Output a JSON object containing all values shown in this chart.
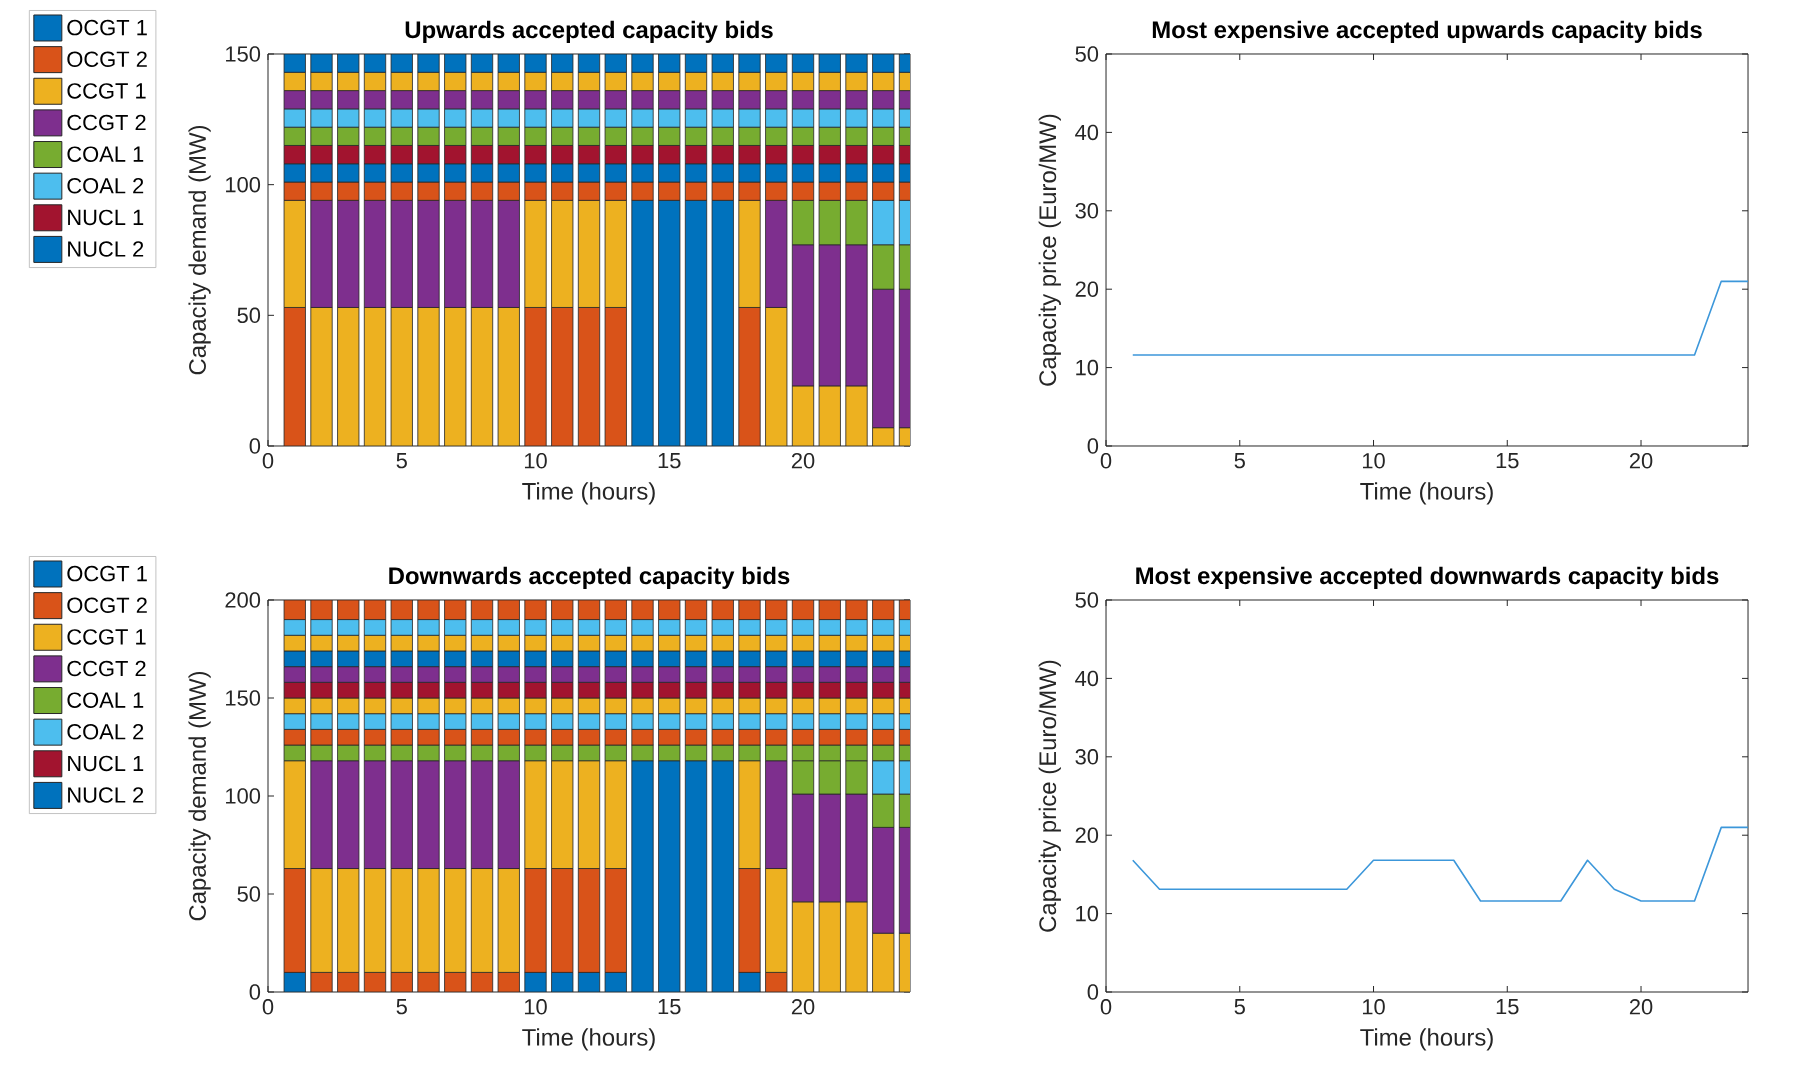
{
  "chart_data": [
    {
      "type": "bar",
      "stacked": true,
      "title": "Upwards accepted capacity bids",
      "xlabel": "Time (hours)",
      "ylabel": "Capacity demand (MW)",
      "legend": "left",
      "x": [
        1,
        2,
        3,
        4,
        5,
        6,
        7,
        8,
        9,
        10,
        11,
        12,
        13,
        14,
        15,
        16,
        17,
        18,
        19,
        20,
        21,
        22,
        23,
        24
      ],
      "xlim": [
        0,
        24
      ],
      "ylim": [
        0,
        150
      ],
      "xticks": [
        0,
        5,
        10,
        15,
        20
      ],
      "yticks": [
        0,
        50,
        100,
        150
      ],
      "series": [
        {
          "name": "OCGT 1",
          "color": "#0072bd",
          "values": [
            null,
            null,
            null,
            null,
            null,
            null,
            null,
            null,
            null,
            null,
            null,
            null,
            null,
            null,
            null,
            null,
            null,
            null,
            null,
            null,
            null,
            null,
            null,
            null
          ]
        },
        {
          "name": "OCGT 2",
          "color": "#d95319",
          "values": [
            53,
            null,
            null,
            null,
            null,
            null,
            null,
            null,
            null,
            53,
            53,
            53,
            53,
            null,
            null,
            null,
            null,
            53,
            null,
            null,
            null,
            null,
            null,
            null
          ]
        },
        {
          "name": "CCGT 1",
          "color": "#edb120",
          "values": [
            41,
            53,
            53,
            53,
            53,
            53,
            53,
            53,
            53,
            41,
            41,
            41,
            41,
            null,
            null,
            null,
            null,
            41,
            53,
            23,
            23,
            23,
            7,
            7
          ]
        },
        {
          "name": "CCGT 2",
          "color": "#7e2f8e",
          "values": [
            null,
            41,
            41,
            41,
            41,
            41,
            41,
            41,
            41,
            null,
            null,
            null,
            null,
            null,
            null,
            null,
            null,
            null,
            41,
            54,
            54,
            54,
            53,
            53
          ]
        },
        {
          "name": "COAL 1",
          "color": "#77ac30",
          "values": [
            null,
            null,
            null,
            null,
            null,
            null,
            null,
            null,
            null,
            null,
            null,
            null,
            null,
            null,
            null,
            null,
            null,
            null,
            null,
            17,
            17,
            17,
            17,
            17
          ]
        },
        {
          "name": "COAL 2",
          "color": "#4dbeee",
          "values": [
            null,
            null,
            null,
            null,
            null,
            null,
            null,
            null,
            null,
            null,
            null,
            null,
            null,
            null,
            null,
            null,
            null,
            null,
            null,
            null,
            null,
            null,
            17,
            17
          ]
        },
        {
          "name": "NUCL 1",
          "color": "#a2142f",
          "values": [
            null,
            null,
            null,
            null,
            null,
            null,
            null,
            null,
            null,
            null,
            null,
            null,
            null,
            null,
            null,
            null,
            null,
            null,
            null,
            null,
            null,
            null,
            null,
            null
          ]
        },
        {
          "name": "NUCL 2",
          "color": "#0072bd",
          "values": [
            null,
            null,
            null,
            null,
            null,
            null,
            null,
            null,
            null,
            null,
            null,
            null,
            null,
            94,
            94,
            94,
            94,
            null,
            null,
            null,
            null,
            null,
            null,
            null
          ]
        },
        {
          "color": "#d95319",
          "values": [
            7,
            7,
            7,
            7,
            7,
            7,
            7,
            7,
            7,
            7,
            7,
            7,
            7,
            7,
            7,
            7,
            7,
            7,
            7,
            7,
            7,
            7,
            7,
            7
          ]
        },
        {
          "color": "#0072bd",
          "values": [
            7,
            7,
            7,
            7,
            7,
            7,
            7,
            7,
            7,
            7,
            7,
            7,
            7,
            7,
            7,
            7,
            7,
            7,
            7,
            7,
            7,
            7,
            7,
            7
          ]
        },
        {
          "color": "#a2142f",
          "values": [
            7,
            7,
            7,
            7,
            7,
            7,
            7,
            7,
            7,
            7,
            7,
            7,
            7,
            7,
            7,
            7,
            7,
            7,
            7,
            7,
            7,
            7,
            7,
            7
          ]
        },
        {
          "color": "#77ac30",
          "values": [
            7,
            7,
            7,
            7,
            7,
            7,
            7,
            7,
            7,
            7,
            7,
            7,
            7,
            7,
            7,
            7,
            7,
            7,
            7,
            7,
            7,
            7,
            7,
            7
          ]
        },
        {
          "color": "#4dbeee",
          "values": [
            7,
            7,
            7,
            7,
            7,
            7,
            7,
            7,
            7,
            7,
            7,
            7,
            7,
            7,
            7,
            7,
            7,
            7,
            7,
            7,
            7,
            7,
            7,
            7
          ]
        },
        {
          "color": "#7e2f8e",
          "values": [
            7,
            7,
            7,
            7,
            7,
            7,
            7,
            7,
            7,
            7,
            7,
            7,
            7,
            7,
            7,
            7,
            7,
            7,
            7,
            7,
            7,
            7,
            7,
            7
          ]
        },
        {
          "color": "#edb120",
          "values": [
            7,
            7,
            7,
            7,
            7,
            7,
            7,
            7,
            7,
            7,
            7,
            7,
            7,
            7,
            7,
            7,
            7,
            7,
            7,
            7,
            7,
            7,
            7,
            7
          ]
        },
        {
          "color": "#0072bd",
          "values": [
            7,
            7,
            7,
            7,
            7,
            7,
            7,
            7,
            7,
            7,
            7,
            7,
            7,
            7,
            7,
            7,
            7,
            7,
            7,
            7,
            7,
            7,
            7,
            7
          ]
        }
      ]
    },
    {
      "type": "line",
      "title": "Most expensive accepted upwards capacity bids",
      "xlabel": "Time (hours)",
      "ylabel": "Capacity price (Euro/MW)",
      "x": [
        1,
        2,
        3,
        4,
        5,
        6,
        7,
        8,
        9,
        10,
        11,
        12,
        13,
        14,
        15,
        16,
        17,
        18,
        19,
        20,
        21,
        22,
        23,
        24
      ],
      "xlim": [
        0,
        24
      ],
      "ylim": [
        0,
        50
      ],
      "xticks": [
        0,
        5,
        10,
        15,
        20
      ],
      "yticks": [
        0,
        10,
        20,
        30,
        40,
        50
      ],
      "series": [
        {
          "color": "#3c97da",
          "values": [
            11.6,
            11.6,
            11.6,
            11.6,
            11.6,
            11.6,
            11.6,
            11.6,
            11.6,
            11.6,
            11.6,
            11.6,
            11.6,
            11.6,
            11.6,
            11.6,
            11.6,
            11.6,
            11.6,
            11.6,
            11.6,
            11.6,
            21,
            21
          ]
        }
      ]
    },
    {
      "type": "bar",
      "stacked": true,
      "title": "Downwards accepted capacity bids",
      "xlabel": "Time (hours)",
      "ylabel": "Capacity demand (MW)",
      "legend": "left",
      "x": [
        1,
        2,
        3,
        4,
        5,
        6,
        7,
        8,
        9,
        10,
        11,
        12,
        13,
        14,
        15,
        16,
        17,
        18,
        19,
        20,
        21,
        22,
        23,
        24
      ],
      "xlim": [
        0,
        24
      ],
      "ylim": [
        0,
        200
      ],
      "xticks": [
        0,
        5,
        10,
        15,
        20
      ],
      "yticks": [
        0,
        50,
        100,
        150,
        200
      ],
      "series": [
        {
          "name": "OCGT 1",
          "color": "#0072bd",
          "values": [
            10,
            null,
            null,
            null,
            null,
            null,
            null,
            null,
            null,
            10,
            10,
            10,
            10,
            null,
            null,
            null,
            null,
            10,
            null,
            null,
            null,
            null,
            null,
            null
          ]
        },
        {
          "name": "OCGT 2",
          "color": "#d95319",
          "values": [
            53,
            10,
            10,
            10,
            10,
            10,
            10,
            10,
            10,
            53,
            53,
            53,
            53,
            null,
            null,
            null,
            null,
            53,
            10,
            null,
            null,
            null,
            null,
            null
          ]
        },
        {
          "name": "CCGT 1",
          "color": "#edb120",
          "values": [
            55,
            53,
            53,
            53,
            53,
            53,
            53,
            53,
            53,
            55,
            55,
            55,
            55,
            null,
            null,
            null,
            null,
            55,
            53,
            46,
            46,
            46,
            30,
            30
          ]
        },
        {
          "name": "CCGT 2",
          "color": "#7e2f8e",
          "values": [
            null,
            55,
            55,
            55,
            55,
            55,
            55,
            55,
            55,
            null,
            null,
            null,
            null,
            null,
            null,
            null,
            null,
            null,
            55,
            55,
            55,
            55,
            54,
            54
          ]
        },
        {
          "name": "COAL 1",
          "color": "#77ac30",
          "values": [
            null,
            null,
            null,
            null,
            null,
            null,
            null,
            null,
            null,
            null,
            null,
            null,
            null,
            null,
            null,
            null,
            null,
            null,
            null,
            17,
            17,
            17,
            17,
            17
          ]
        },
        {
          "name": "COAL 2",
          "color": "#4dbeee",
          "values": [
            null,
            null,
            null,
            null,
            null,
            null,
            null,
            null,
            null,
            null,
            null,
            null,
            null,
            null,
            null,
            null,
            null,
            null,
            null,
            null,
            null,
            null,
            17,
            17
          ]
        },
        {
          "name": "NUCL 1",
          "color": "#a2142f",
          "values": [
            null,
            null,
            null,
            null,
            null,
            null,
            null,
            null,
            null,
            null,
            null,
            null,
            null,
            null,
            null,
            null,
            null,
            null,
            null,
            null,
            null,
            null,
            null,
            null
          ]
        },
        {
          "name": "NUCL 2",
          "color": "#0072bd",
          "values": [
            null,
            null,
            null,
            null,
            null,
            null,
            null,
            null,
            null,
            null,
            null,
            null,
            null,
            118,
            118,
            118,
            118,
            null,
            null,
            null,
            null,
            null,
            null,
            null
          ]
        },
        {
          "color": "#77ac30",
          "values": [
            8,
            8,
            8,
            8,
            8,
            8,
            8,
            8,
            8,
            8,
            8,
            8,
            8,
            8,
            8,
            8,
            8,
            8,
            8,
            8,
            8,
            8,
            8,
            8
          ]
        },
        {
          "color": "#d95319",
          "values": [
            8,
            8,
            8,
            8,
            8,
            8,
            8,
            8,
            8,
            8,
            8,
            8,
            8,
            8,
            8,
            8,
            8,
            8,
            8,
            8,
            8,
            8,
            8,
            8
          ]
        },
        {
          "color": "#4dbeee",
          "values": [
            8,
            8,
            8,
            8,
            8,
            8,
            8,
            8,
            8,
            8,
            8,
            8,
            8,
            8,
            8,
            8,
            8,
            8,
            8,
            8,
            8,
            8,
            8,
            8
          ]
        },
        {
          "color": "#edb120",
          "values": [
            8,
            8,
            8,
            8,
            8,
            8,
            8,
            8,
            8,
            8,
            8,
            8,
            8,
            8,
            8,
            8,
            8,
            8,
            8,
            8,
            8,
            8,
            8,
            8
          ]
        },
        {
          "color": "#a2142f",
          "values": [
            8,
            8,
            8,
            8,
            8,
            8,
            8,
            8,
            8,
            8,
            8,
            8,
            8,
            8,
            8,
            8,
            8,
            8,
            8,
            8,
            8,
            8,
            8,
            8
          ]
        },
        {
          "color": "#7e2f8e",
          "values": [
            8,
            8,
            8,
            8,
            8,
            8,
            8,
            8,
            8,
            8,
            8,
            8,
            8,
            8,
            8,
            8,
            8,
            8,
            8,
            8,
            8,
            8,
            8,
            8
          ]
        },
        {
          "color": "#0072bd",
          "values": [
            8,
            8,
            8,
            8,
            8,
            8,
            8,
            8,
            8,
            8,
            8,
            8,
            8,
            8,
            8,
            8,
            8,
            8,
            8,
            8,
            8,
            8,
            8,
            8
          ]
        },
        {
          "color": "#edb120",
          "values": [
            8,
            8,
            8,
            8,
            8,
            8,
            8,
            8,
            8,
            8,
            8,
            8,
            8,
            8,
            8,
            8,
            8,
            8,
            8,
            8,
            8,
            8,
            8,
            8
          ]
        },
        {
          "color": "#4dbeee",
          "values": [
            8,
            8,
            8,
            8,
            8,
            8,
            8,
            8,
            8,
            8,
            8,
            8,
            8,
            8,
            8,
            8,
            8,
            8,
            8,
            8,
            8,
            8,
            8,
            8
          ]
        },
        {
          "color": "#d95319",
          "values": [
            10,
            10,
            10,
            10,
            10,
            10,
            10,
            10,
            10,
            10,
            10,
            10,
            10,
            10,
            10,
            10,
            10,
            10,
            10,
            10,
            10,
            10,
            10,
            10
          ]
        }
      ]
    },
    {
      "type": "line",
      "title": "Most expensive accepted downwards capacity bids",
      "xlabel": "Time (hours)",
      "ylabel": "Capacity price (Euro/MW)",
      "x": [
        1,
        2,
        3,
        4,
        5,
        6,
        7,
        8,
        9,
        10,
        11,
        12,
        13,
        14,
        15,
        16,
        17,
        18,
        19,
        20,
        21,
        22,
        23,
        24
      ],
      "xlim": [
        0,
        24
      ],
      "ylim": [
        0,
        50
      ],
      "xticks": [
        0,
        5,
        10,
        15,
        20
      ],
      "yticks": [
        0,
        10,
        20,
        30,
        40,
        50
      ],
      "series": [
        {
          "color": "#3c97da",
          "values": [
            16.8,
            13.1,
            13.1,
            13.1,
            13.1,
            13.1,
            13.1,
            13.1,
            13.1,
            16.8,
            16.8,
            16.8,
            16.8,
            11.6,
            11.6,
            11.6,
            11.6,
            16.8,
            13.1,
            11.6,
            11.6,
            11.6,
            21,
            21
          ]
        }
      ]
    }
  ]
}
